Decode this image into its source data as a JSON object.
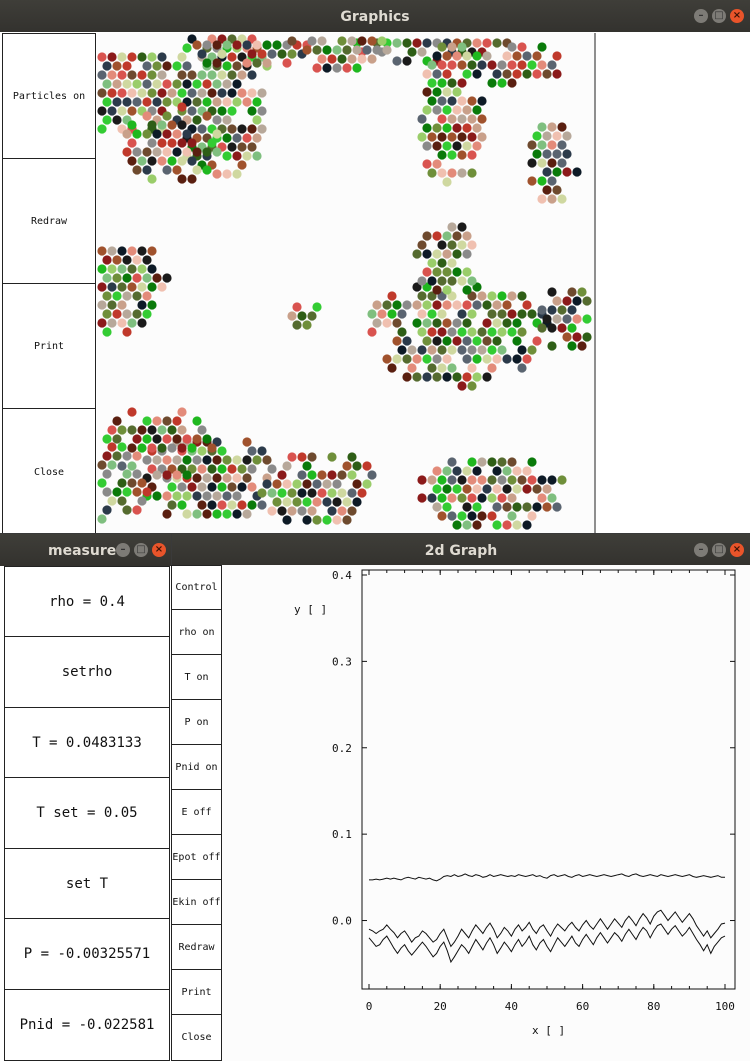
{
  "graphics_window": {
    "title": "Graphics",
    "buttons": [
      "Particles on",
      "Redraw",
      "Print",
      "Close"
    ]
  },
  "measure_window": {
    "title": "measure",
    "cells": [
      "rho = 0.4",
      "setrho",
      "T = 0.0483133",
      "T set = 0.05",
      "set T",
      "P = -0.00325571",
      "Pnid = -0.022581"
    ]
  },
  "graph_window": {
    "title": "2d Graph",
    "controls": [
      "Control",
      "rho on",
      "T on",
      "P on",
      "Pnid on",
      "E off",
      "Epot off",
      "Ekin off",
      "Redraw",
      "Print",
      "Close"
    ]
  },
  "chart_data": {
    "type": "line",
    "xlabel": "x [ ]",
    "ylabel": "y [ ]",
    "xlim": [
      0,
      100
    ],
    "ylim": [
      -0.07,
      0.4
    ],
    "x_ticks": [
      "0",
      "20",
      "40",
      "60",
      "80",
      "100"
    ],
    "y_ticks": [
      "0.0",
      "0.1",
      "0.2",
      "0.3",
      "0.4"
    ],
    "series": [
      {
        "values": [
          0.047,
          0.047,
          0.048,
          0.047,
          0.048,
          0.049,
          0.048,
          0.049,
          0.048,
          0.047,
          0.049,
          0.05,
          0.049,
          0.048,
          0.05,
          0.049,
          0.048,
          0.049,
          0.047,
          0.046,
          0.048,
          0.051,
          0.052,
          0.051,
          0.053,
          0.051,
          0.052,
          0.054,
          0.052,
          0.051,
          0.053,
          0.052,
          0.05,
          0.051,
          0.053,
          0.051,
          0.052,
          0.053,
          0.052,
          0.051,
          0.052,
          0.051,
          0.053,
          0.052,
          0.051,
          0.052,
          0.053,
          0.051,
          0.052,
          0.05,
          0.049,
          0.052,
          0.053,
          0.051,
          0.052,
          0.053,
          0.051,
          0.05,
          0.052,
          0.053,
          0.051,
          0.052,
          0.053,
          0.052,
          0.051,
          0.052,
          0.053,
          0.052,
          0.051,
          0.052,
          0.053,
          0.054,
          0.052,
          0.051,
          0.053,
          0.054,
          0.052,
          0.051,
          0.052,
          0.053,
          0.052,
          0.051,
          0.053,
          0.052,
          0.051,
          0.052,
          0.053,
          0.052,
          0.051,
          0.052,
          0.053,
          0.051,
          0.05,
          0.051,
          0.052,
          0.051,
          0.05,
          0.051,
          0.052,
          0.05,
          0.05
        ]
      },
      {
        "values": [
          -0.01,
          -0.012,
          -0.015,
          -0.012,
          -0.01,
          -0.005,
          -0.01,
          -0.014,
          -0.02,
          -0.015,
          -0.012,
          -0.018,
          -0.025,
          -0.02,
          -0.018,
          -0.012,
          -0.015,
          -0.02,
          -0.025,
          -0.022,
          -0.015,
          -0.01,
          -0.02,
          -0.03,
          -0.025,
          -0.018,
          -0.01,
          -0.015,
          -0.02,
          -0.012,
          -0.005,
          -0.01,
          -0.015,
          -0.008,
          -0.003,
          -0.01,
          -0.02,
          -0.015,
          -0.008,
          -0.012,
          -0.018,
          -0.01,
          -0.005,
          -0.012,
          -0.008,
          -0.002,
          -0.01,
          -0.015,
          -0.008,
          -0.005,
          -0.012,
          -0.018,
          -0.01,
          -0.004,
          -0.008,
          -0.012,
          -0.006,
          -0.002,
          -0.008,
          -0.012,
          -0.005,
          0.0,
          -0.006,
          -0.01,
          -0.004,
          0.002,
          -0.004,
          -0.01,
          -0.004,
          0.002,
          -0.003,
          -0.008,
          0.0,
          0.005,
          0.0,
          -0.006,
          0.002,
          0.008,
          0.003,
          -0.004,
          0.005,
          0.01,
          0.012,
          0.006,
          0.0,
          0.005,
          0.01,
          0.004,
          -0.002,
          0.003,
          0.008,
          0.002,
          -0.006,
          -0.012,
          -0.018,
          -0.012,
          -0.02,
          -0.015,
          -0.01,
          -0.004,
          -0.003
        ]
      },
      {
        "values": [
          -0.02,
          -0.025,
          -0.03,
          -0.028,
          -0.022,
          -0.018,
          -0.025,
          -0.032,
          -0.038,
          -0.032,
          -0.028,
          -0.035,
          -0.04,
          -0.035,
          -0.03,
          -0.025,
          -0.03,
          -0.036,
          -0.042,
          -0.038,
          -0.03,
          -0.025,
          -0.035,
          -0.048,
          -0.042,
          -0.035,
          -0.028,
          -0.032,
          -0.038,
          -0.03,
          -0.022,
          -0.028,
          -0.034,
          -0.026,
          -0.02,
          -0.028,
          -0.038,
          -0.032,
          -0.025,
          -0.03,
          -0.036,
          -0.028,
          -0.022,
          -0.03,
          -0.025,
          -0.018,
          -0.028,
          -0.034,
          -0.026,
          -0.022,
          -0.03,
          -0.036,
          -0.028,
          -0.02,
          -0.025,
          -0.03,
          -0.024,
          -0.018,
          -0.026,
          -0.03,
          -0.022,
          -0.016,
          -0.022,
          -0.028,
          -0.02,
          -0.014,
          -0.02,
          -0.026,
          -0.02,
          -0.014,
          -0.018,
          -0.024,
          -0.016,
          -0.01,
          -0.016,
          -0.022,
          -0.014,
          -0.008,
          -0.012,
          -0.02,
          -0.012,
          -0.006,
          -0.004,
          -0.01,
          -0.016,
          -0.01,
          -0.006,
          -0.012,
          -0.018,
          -0.014,
          -0.008,
          -0.015,
          -0.022,
          -0.028,
          -0.035,
          -0.028,
          -0.038,
          -0.03,
          -0.025,
          -0.02,
          -0.018
        ]
      }
    ]
  }
}
